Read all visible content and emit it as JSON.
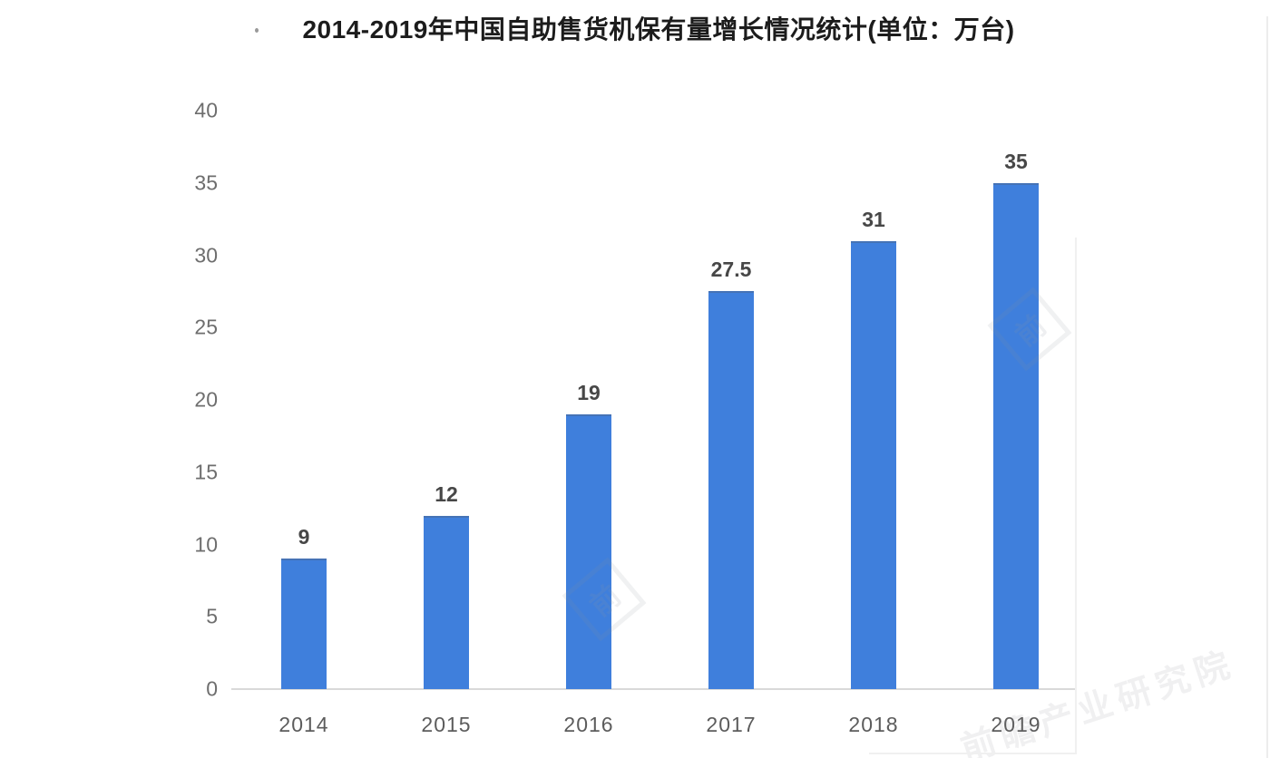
{
  "chart_data": {
    "type": "bar",
    "title": "2014-2019年中国自助售货机保有量增长情况统计(单位：万台)",
    "categories": [
      "2014",
      "2015",
      "2016",
      "2017",
      "2018",
      "2019"
    ],
    "values": [
      9,
      12,
      19,
      27.5,
      31,
      35
    ],
    "value_labels": [
      "9",
      "12",
      "19",
      "27.5",
      "31",
      "35"
    ],
    "xlabel": "",
    "ylabel": "",
    "ylim": [
      0,
      40
    ],
    "yticks": [
      0,
      5,
      10,
      15,
      20,
      25,
      30,
      35,
      40
    ],
    "grid": false,
    "legend": null,
    "series_name": "自助售货机保有量"
  },
  "watermark": {
    "text": "前瞻产业研究院",
    "logo_char": "前"
  },
  "colors": {
    "background": "#ffffff",
    "bar": "#3f7fdc",
    "bar_top_edge": "rgba(80,98,125,0.40)",
    "axis_line": "#d9d9d9",
    "title_text": "#1c1c1c",
    "ytick_text": "#6e6e6e",
    "xtick_text": "#5c5c5c",
    "value_label_text": "#474747"
  }
}
